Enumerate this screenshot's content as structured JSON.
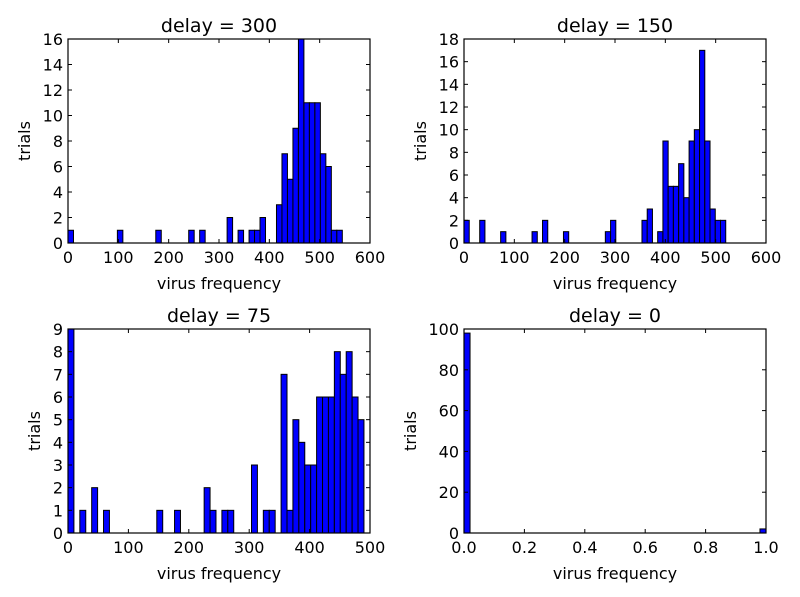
{
  "colors": {
    "bar": "#0000ff",
    "edge": "#000000",
    "background": "#ffffff"
  },
  "chart_data": [
    {
      "type": "bar",
      "title": "delay = 300",
      "xlabel": "virus frequency",
      "ylabel": "trials",
      "xlim": [
        0,
        600
      ],
      "ylim": [
        0,
        16
      ],
      "xticks": [
        0,
        100,
        200,
        300,
        400,
        500,
        600
      ],
      "yticks": [
        0,
        2,
        4,
        6,
        8,
        10,
        12,
        14,
        16
      ],
      "bin_edges": [
        0,
        10.9,
        21.8,
        32.7,
        43.6,
        54.5,
        65.4,
        76.3,
        87.2,
        98.1,
        109,
        119.9,
        130.8,
        141.7,
        152.6,
        163.5,
        174.4,
        185.3,
        196.2,
        207.1,
        218,
        228.9,
        239.8,
        250.7,
        261.6,
        272.5,
        283.4,
        294.3,
        305.2,
        316.1,
        327,
        337.9,
        348.8,
        359.7,
        370.6,
        381.5,
        392.4,
        403.3,
        414.2,
        425.1,
        436,
        446.9,
        457.8,
        468.7,
        479.6,
        490.5,
        501.4,
        512.3,
        523.2,
        534.1,
        545
      ],
      "counts": [
        1,
        0,
        0,
        0,
        0,
        0,
        0,
        0,
        0,
        1,
        0,
        0,
        0,
        0,
        0,
        0,
        1,
        0,
        0,
        0,
        0,
        0,
        1,
        0,
        1,
        0,
        0,
        0,
        0,
        2,
        0,
        1,
        0,
        1,
        1,
        2,
        0,
        0,
        3,
        7,
        5,
        9,
        16,
        11,
        11,
        11,
        7,
        6,
        1,
        1
      ]
    },
    {
      "type": "bar",
      "title": "delay = 150",
      "xlabel": "virus frequency",
      "ylabel": "trials",
      "xlim": [
        0,
        600
      ],
      "ylim": [
        0,
        18
      ],
      "xticks": [
        0,
        100,
        200,
        300,
        400,
        500,
        600
      ],
      "yticks": [
        0,
        2,
        4,
        6,
        8,
        10,
        12,
        14,
        16,
        18
      ],
      "bin_edges": [
        0,
        10.4,
        20.8,
        31.2,
        41.6,
        52,
        62.4,
        72.8,
        83.2,
        93.6,
        104,
        114.4,
        124.8,
        135.2,
        145.6,
        156,
        166.4,
        176.8,
        187.2,
        197.6,
        208,
        218.4,
        228.8,
        239.2,
        249.6,
        260,
        270.4,
        280.8,
        291.2,
        301.6,
        312,
        322.4,
        332.8,
        343.2,
        353.6,
        364,
        374.4,
        384.8,
        395.2,
        405.6,
        416,
        426.4,
        436.8,
        447.2,
        457.6,
        468,
        478.4,
        488.8,
        499.2,
        509.6,
        520
      ],
      "counts": [
        2,
        0,
        0,
        2,
        0,
        0,
        0,
        1,
        0,
        0,
        0,
        0,
        0,
        1,
        0,
        2,
        0,
        0,
        0,
        1,
        0,
        0,
        0,
        0,
        0,
        0,
        0,
        1,
        2,
        0,
        0,
        0,
        0,
        0,
        2,
        3,
        0,
        1,
        9,
        5,
        5,
        7,
        4,
        9,
        10,
        17,
        9,
        3,
        2,
        2
      ]
    },
    {
      "type": "bar",
      "title": "delay = 75",
      "xlabel": "virus frequency",
      "ylabel": "trials",
      "xlim": [
        0,
        500
      ],
      "ylim": [
        0,
        9
      ],
      "xticks": [
        0,
        100,
        200,
        300,
        400,
        500
      ],
      "yticks": [
        0,
        1,
        2,
        3,
        4,
        5,
        6,
        7,
        8,
        9
      ],
      "bin_edges": [
        0,
        9.8,
        19.6,
        29.4,
        39.2,
        49,
        58.8,
        68.6,
        78.4,
        88.2,
        98,
        107.8,
        117.6,
        127.4,
        137.2,
        147,
        156.8,
        166.6,
        176.4,
        186.2,
        196,
        205.8,
        215.6,
        225.4,
        235.2,
        245,
        254.8,
        264.6,
        274.4,
        284.2,
        294,
        303.8,
        313.6,
        323.4,
        333.2,
        343,
        352.8,
        362.6,
        372.4,
        382.2,
        392,
        401.8,
        411.6,
        421.4,
        431.2,
        441,
        450.8,
        460.6,
        470.4,
        480.2,
        490
      ],
      "counts": [
        9,
        0,
        1,
        0,
        2,
        0,
        1,
        0,
        0,
        0,
        0,
        0,
        0,
        0,
        0,
        1,
        0,
        0,
        1,
        0,
        0,
        0,
        0,
        2,
        1,
        0,
        1,
        1,
        0,
        0,
        0,
        3,
        0,
        1,
        1,
        0,
        7,
        1,
        5,
        4,
        3,
        3,
        6,
        6,
        6,
        8,
        7,
        8,
        6,
        5
      ]
    },
    {
      "type": "bar",
      "title": "delay = 0",
      "xlabel": "virus frequency",
      "ylabel": "trials",
      "xlim": [
        0,
        1
      ],
      "ylim": [
        0,
        100
      ],
      "xticks": [
        0.0,
        0.2,
        0.4,
        0.6,
        0.8,
        1.0
      ],
      "xtick_labels": [
        "0.0",
        "0.2",
        "0.4",
        "0.6",
        "0.8",
        "1.0"
      ],
      "yticks": [
        0,
        20,
        40,
        60,
        80,
        100
      ],
      "bin_edges": [
        0,
        0.02,
        0.04,
        0.06,
        0.08,
        0.1,
        0.12,
        0.14,
        0.16,
        0.18,
        0.2,
        0.22,
        0.24,
        0.26,
        0.28,
        0.3,
        0.32,
        0.34,
        0.36,
        0.38,
        0.4,
        0.42,
        0.44,
        0.46,
        0.48,
        0.5,
        0.52,
        0.54,
        0.56,
        0.58,
        0.6,
        0.62,
        0.64,
        0.66,
        0.68,
        0.7,
        0.72,
        0.74,
        0.76,
        0.78,
        0.8,
        0.82,
        0.84,
        0.86,
        0.88,
        0.9,
        0.92,
        0.94,
        0.96,
        0.98,
        1.0
      ],
      "counts": [
        98,
        0,
        0,
        0,
        0,
        0,
        0,
        0,
        0,
        0,
        0,
        0,
        0,
        0,
        0,
        0,
        0,
        0,
        0,
        0,
        0,
        0,
        0,
        0,
        0,
        0,
        0,
        0,
        0,
        0,
        0,
        0,
        0,
        0,
        0,
        0,
        0,
        0,
        0,
        0,
        0,
        0,
        0,
        0,
        0,
        0,
        0,
        0,
        0,
        2
      ]
    }
  ]
}
